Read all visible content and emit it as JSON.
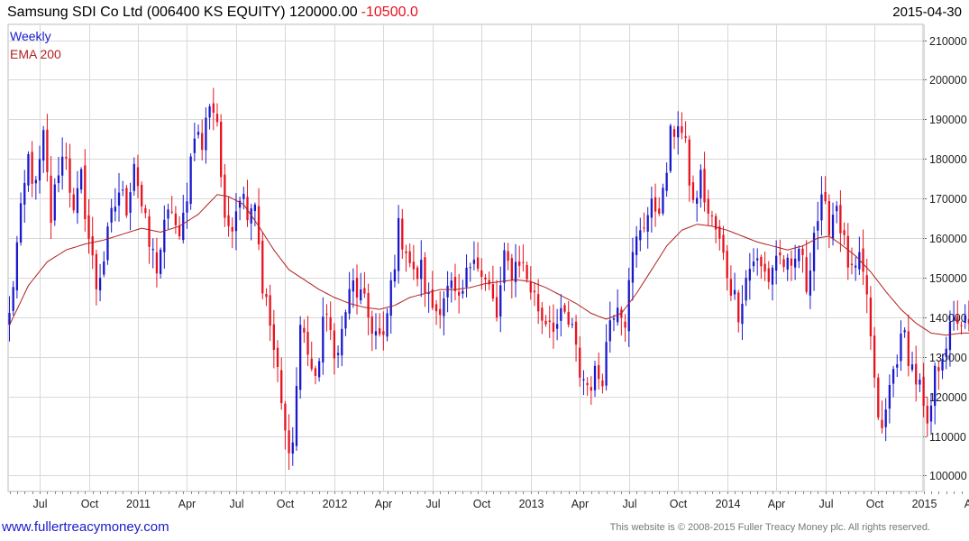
{
  "header": {
    "title": "Samsung SDI Co Ltd (006400 KS EQUITY) 120000.00",
    "change": "-10500.0",
    "date": "2015-04-30"
  },
  "footer": {
    "link_text": "www.fullertreacymoney.com",
    "copyright": "This website is © 2008-2015 Fuller Treacy Money plc. All rights reserved."
  },
  "colors": {
    "up": "#1a1acc",
    "down": "#e8121e",
    "ema": "#b02020",
    "grid": "#d8d8d8"
  },
  "chart_data": {
    "type": "candlestick",
    "legend": [
      "Weekly",
      "EMA 200"
    ],
    "ylim": [
      96000,
      214000
    ],
    "y_ticks": [
      100000,
      110000,
      120000,
      130000,
      140000,
      150000,
      160000,
      170000,
      180000,
      190000,
      200000,
      210000
    ],
    "y_tick_labels": [
      "100000",
      "110000",
      "120000",
      "130000",
      "140000",
      "150000",
      "160000",
      "170000",
      "180000",
      "190000",
      "200000",
      "210000"
    ],
    "x_range_weeks": [
      0,
      241.5
    ],
    "x_ticks": [
      {
        "week": 8,
        "label": "Jul"
      },
      {
        "week": 21,
        "label": "Oct"
      },
      {
        "week": 34,
        "label": "2011"
      },
      {
        "week": 47,
        "label": "Apr"
      },
      {
        "week": 60,
        "label": "Jul"
      },
      {
        "week": 73,
        "label": "Oct"
      },
      {
        "week": 86,
        "label": "2012"
      },
      {
        "week": 99,
        "label": "Apr"
      },
      {
        "week": 112,
        "label": "Jul"
      },
      {
        "week": 125,
        "label": "Oct"
      },
      {
        "week": 138,
        "label": "2013"
      },
      {
        "week": 151,
        "label": "Apr"
      },
      {
        "week": 164,
        "label": "Jul"
      },
      {
        "week": 177,
        "label": "Oct"
      },
      {
        "week": 190,
        "label": "2014"
      },
      {
        "week": 203,
        "label": "Apr"
      },
      {
        "week": 216,
        "label": "Jul"
      },
      {
        "week": 229,
        "label": "Oct"
      },
      {
        "week": 242,
        "label": "2015"
      },
      {
        "week": 255,
        "label": "Apr"
      }
    ],
    "close_anchors": [
      [
        0,
        140000
      ],
      [
        2,
        158000
      ],
      [
        5,
        180000
      ],
      [
        7,
        172000
      ],
      [
        9,
        185000
      ],
      [
        11,
        165000
      ],
      [
        13,
        178000
      ],
      [
        15,
        182000
      ],
      [
        17,
        165000
      ],
      [
        19,
        175000
      ],
      [
        21,
        160000
      ],
      [
        23,
        148000
      ],
      [
        25,
        155000
      ],
      [
        27,
        165000
      ],
      [
        29,
        172000
      ],
      [
        31,
        168000
      ],
      [
        33,
        180000
      ],
      [
        35,
        168000
      ],
      [
        37,
        158000
      ],
      [
        39,
        153000
      ],
      [
        41,
        162000
      ],
      [
        43,
        168000
      ],
      [
        45,
        158000
      ],
      [
        47,
        172000
      ],
      [
        49,
        188000
      ],
      [
        51,
        183000
      ],
      [
        53,
        195000
      ],
      [
        55,
        190000
      ],
      [
        57,
        162000
      ],
      [
        59,
        165000
      ],
      [
        61,
        172000
      ],
      [
        63,
        168000
      ],
      [
        65,
        170000
      ],
      [
        67,
        148000
      ],
      [
        69,
        138000
      ],
      [
        71,
        125000
      ],
      [
        73,
        110000
      ],
      [
        75,
        108000
      ],
      [
        77,
        138000
      ],
      [
        79,
        132000
      ],
      [
        81,
        122000
      ],
      [
        83,
        140000
      ],
      [
        85,
        136000
      ],
      [
        87,
        130000
      ],
      [
        89,
        142000
      ],
      [
        91,
        148000
      ],
      [
        93,
        145000
      ],
      [
        95,
        140000
      ],
      [
        97,
        136000
      ],
      [
        99,
        133000
      ],
      [
        101,
        148000
      ],
      [
        103,
        162000
      ],
      [
        105,
        158000
      ],
      [
        107,
        150000
      ],
      [
        109,
        152000
      ],
      [
        111,
        144000
      ],
      [
        113,
        142000
      ],
      [
        115,
        146000
      ],
      [
        117,
        147000
      ],
      [
        119,
        142000
      ],
      [
        121,
        150000
      ],
      [
        123,
        158000
      ],
      [
        125,
        150000
      ],
      [
        127,
        147000
      ],
      [
        129,
        140000
      ],
      [
        131,
        154000
      ],
      [
        133,
        152000
      ],
      [
        135,
        155000
      ],
      [
        137,
        150000
      ],
      [
        139,
        145000
      ],
      [
        141,
        140000
      ],
      [
        143,
        140000
      ],
      [
        145,
        138000
      ],
      [
        147,
        140000
      ],
      [
        149,
        136000
      ],
      [
        151,
        126000
      ],
      [
        153,
        123000
      ],
      [
        155,
        125000
      ],
      [
        157,
        126000
      ],
      [
        159,
        140000
      ],
      [
        161,
        145000
      ],
      [
        163,
        140000
      ],
      [
        165,
        155000
      ],
      [
        167,
        163000
      ],
      [
        169,
        166000
      ],
      [
        171,
        168000
      ],
      [
        173,
        170000
      ],
      [
        175,
        185000
      ],
      [
        177,
        190000
      ],
      [
        179,
        182000
      ],
      [
        181,
        168000
      ],
      [
        183,
        175000
      ],
      [
        185,
        166000
      ],
      [
        187,
        162000
      ],
      [
        189,
        155000
      ],
      [
        191,
        148000
      ],
      [
        193,
        142000
      ],
      [
        195,
        150000
      ],
      [
        197,
        155000
      ],
      [
        199,
        152000
      ],
      [
        201,
        150000
      ],
      [
        203,
        156000
      ],
      [
        205,
        154000
      ],
      [
        207,
        150000
      ],
      [
        209,
        158000
      ],
      [
        211,
        148000
      ],
      [
        213,
        162000
      ],
      [
        215,
        168000
      ],
      [
        217,
        164000
      ],
      [
        219,
        169000
      ],
      [
        221,
        158000
      ],
      [
        223,
        150000
      ],
      [
        225,
        153000
      ],
      [
        227,
        146000
      ],
      [
        229,
        122000
      ],
      [
        231,
        110000
      ],
      [
        233,
        122000
      ],
      [
        235,
        131000
      ],
      [
        237,
        135000
      ],
      [
        239,
        127000
      ],
      [
        241,
        122000
      ],
      [
        243,
        110000
      ],
      [
        245,
        125000
      ],
      [
        247,
        132000
      ],
      [
        249,
        136000
      ],
      [
        251,
        140000
      ],
      [
        253,
        138000
      ],
      [
        255,
        135000
      ],
      [
        256,
        130500
      ],
      [
        257,
        120000
      ]
    ],
    "ema_anchors": [
      [
        0,
        138000
      ],
      [
        5,
        148000
      ],
      [
        10,
        154000
      ],
      [
        15,
        157000
      ],
      [
        20,
        158500
      ],
      [
        25,
        159500
      ],
      [
        30,
        161000
      ],
      [
        35,
        162500
      ],
      [
        40,
        161500
      ],
      [
        45,
        163000
      ],
      [
        50,
        166000
      ],
      [
        55,
        171000
      ],
      [
        58,
        170500
      ],
      [
        62,
        168500
      ],
      [
        66,
        163000
      ],
      [
        70,
        157000
      ],
      [
        74,
        152000
      ],
      [
        78,
        149500
      ],
      [
        82,
        147000
      ],
      [
        86,
        145000
      ],
      [
        90,
        143500
      ],
      [
        94,
        142500
      ],
      [
        98,
        142000
      ],
      [
        102,
        143000
      ],
      [
        106,
        145000
      ],
      [
        110,
        146000
      ],
      [
        114,
        147000
      ],
      [
        118,
        147000
      ],
      [
        122,
        147500
      ],
      [
        126,
        148500
      ],
      [
        130,
        149000
      ],
      [
        134,
        149500
      ],
      [
        138,
        149000
      ],
      [
        142,
        147500
      ],
      [
        146,
        145500
      ],
      [
        150,
        143500
      ],
      [
        154,
        141000
      ],
      [
        158,
        139500
      ],
      [
        162,
        141000
      ],
      [
        166,
        146000
      ],
      [
        170,
        152000
      ],
      [
        174,
        158000
      ],
      [
        178,
        162000
      ],
      [
        182,
        163500
      ],
      [
        186,
        163000
      ],
      [
        190,
        162000
      ],
      [
        194,
        160500
      ],
      [
        198,
        159000
      ],
      [
        202,
        158000
      ],
      [
        206,
        157000
      ],
      [
        210,
        158000
      ],
      [
        214,
        160000
      ],
      [
        217,
        160500
      ],
      [
        220,
        158500
      ],
      [
        224,
        155500
      ],
      [
        228,
        151500
      ],
      [
        232,
        146500
      ],
      [
        236,
        142000
      ],
      [
        240,
        138500
      ],
      [
        244,
        136000
      ],
      [
        248,
        135500
      ],
      [
        252,
        136000
      ],
      [
        257,
        136000
      ]
    ]
  }
}
